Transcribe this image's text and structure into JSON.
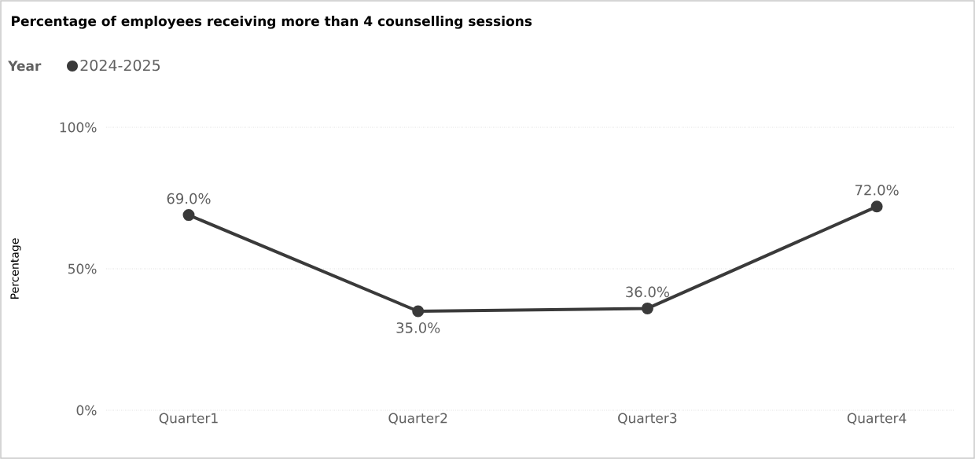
{
  "chart_data": {
    "type": "line",
    "title": "Percentage of employees receiving more than 4 counselling sessions",
    "legend_title": "Year",
    "legend": "top left",
    "ylabel": "Percentage",
    "categories": [
      "Quarter1",
      "Quarter2",
      "Quarter3",
      "Quarter4"
    ],
    "series": [
      {
        "name": "2024-2025",
        "color": "#3a3a3a",
        "values": [
          69,
          35,
          36,
          72
        ],
        "value_labels": [
          "69.0%",
          "35.0%",
          "36.0%",
          "72.0%"
        ]
      }
    ],
    "ylim": [
      0,
      100
    ],
    "yticks": [
      {
        "value": 0,
        "label": "0%"
      },
      {
        "value": 50,
        "label": "50%"
      },
      {
        "value": 100,
        "label": "100%"
      }
    ],
    "grid": "y",
    "marker": "circle",
    "line_style": "solid"
  }
}
